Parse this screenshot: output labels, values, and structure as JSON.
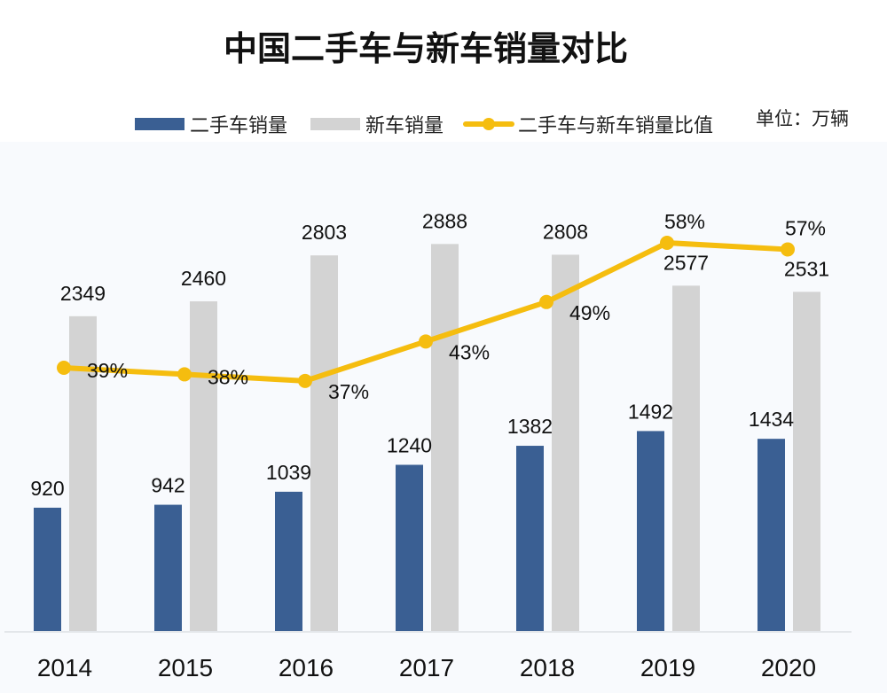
{
  "chart_data": {
    "type": "bar",
    "title": "中国二手车与新车销量对比",
    "unit_label": "单位：万辆",
    "categories": [
      "2014",
      "2015",
      "2016",
      "2017",
      "2018",
      "2019",
      "2020"
    ],
    "series": [
      {
        "name": "二手车销量",
        "type": "bar",
        "color": "#3a5f93",
        "values": [
          920,
          942,
          1039,
          1240,
          1382,
          1492,
          1434
        ]
      },
      {
        "name": "新车销量",
        "type": "bar",
        "color": "#d3d3d3",
        "values": [
          2349,
          2460,
          2803,
          2888,
          2808,
          2577,
          2531
        ]
      },
      {
        "name": "二手车与新车销量比值",
        "type": "line",
        "color": "#f5bd0f",
        "values": [
          39,
          38,
          37,
          43,
          49,
          58,
          57
        ],
        "labels": [
          "39%",
          "38%",
          "37%",
          "43%",
          "49%",
          "58%",
          "57%"
        ]
      }
    ],
    "grid": false,
    "legend_position": "top"
  }
}
